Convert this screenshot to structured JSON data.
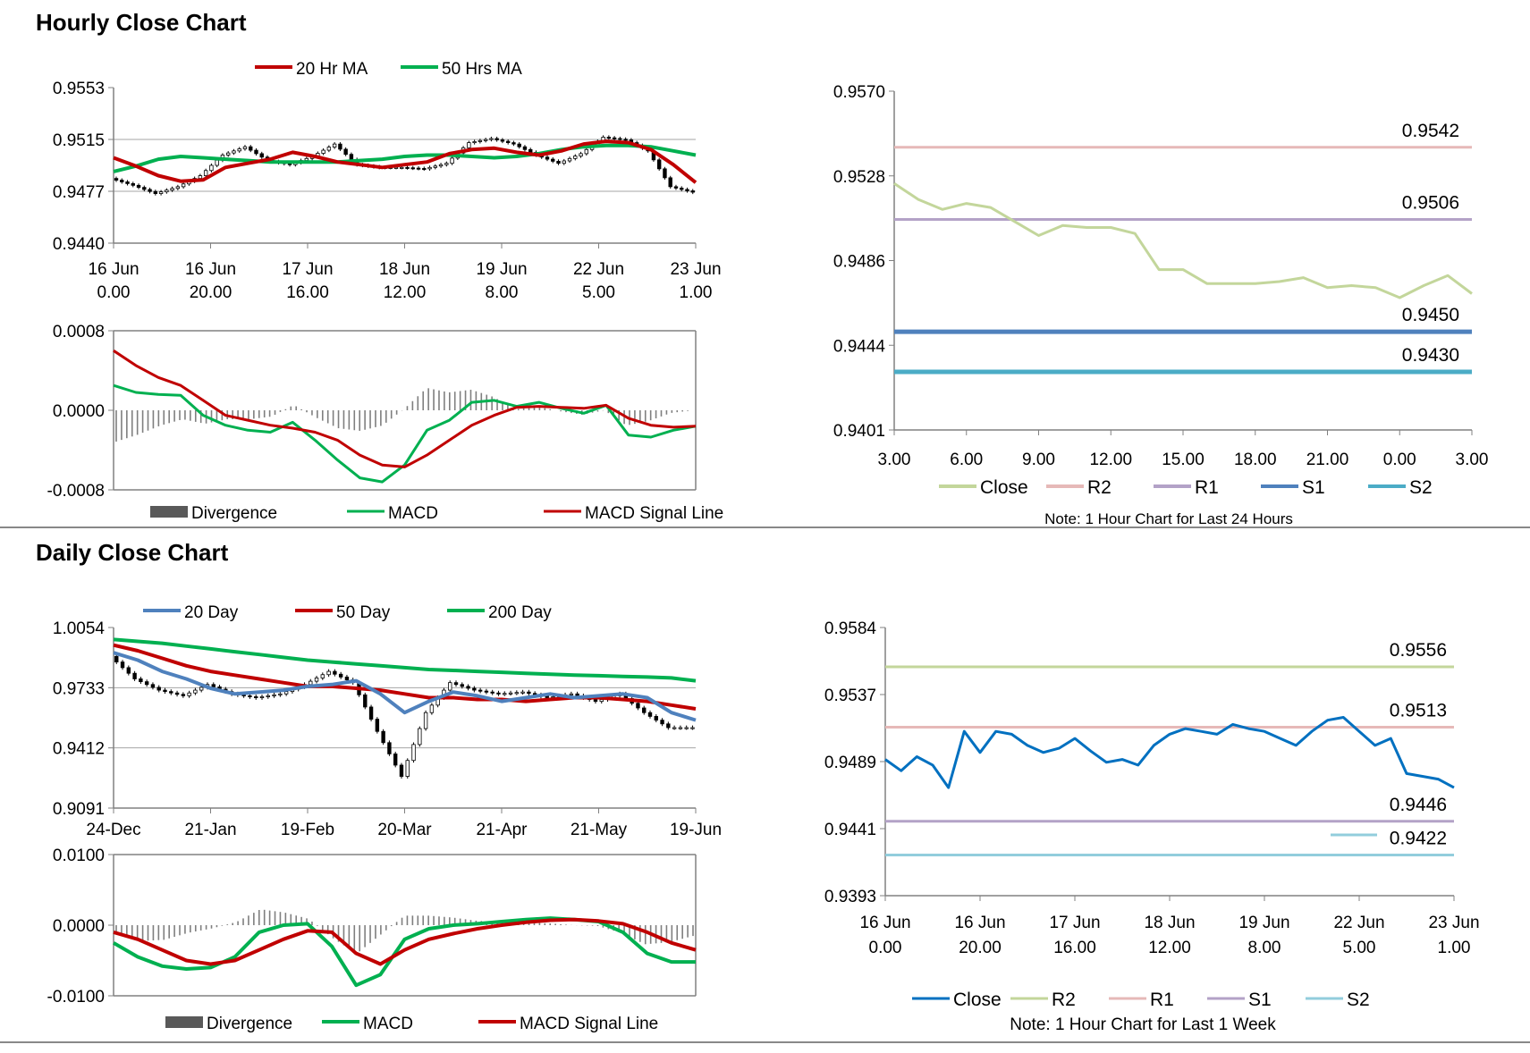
{
  "sections": {
    "hourly_title": "Hourly Close Chart",
    "daily_title": "Daily Close Chart"
  },
  "chart_data": [
    {
      "id": "hourly-price",
      "type": "line",
      "legend": [
        "20 Hr MA",
        "50 Hrs MA"
      ],
      "legend_colors": [
        "#c00000",
        "#00b050"
      ],
      "y_ticks": [
        "0.9553",
        "0.9515",
        "0.9477",
        "0.9440"
      ],
      "ylim": [
        0.944,
        0.9553
      ],
      "x_tick_labels": [
        [
          "16 Jun",
          "0.00"
        ],
        [
          "16 Jun",
          "20.00"
        ],
        [
          "17 Jun",
          "16.00"
        ],
        [
          "18 Jun",
          "12.00"
        ],
        [
          "19 Jun",
          "8.00"
        ],
        [
          "22 Jun",
          "5.00"
        ],
        [
          "23 Jun",
          "1.00"
        ]
      ],
      "series": [
        {
          "name": "20 Hr MA",
          "color": "#c00000",
          "values": [
            0.9502,
            0.9496,
            0.9489,
            0.9485,
            0.9486,
            0.9495,
            0.9498,
            0.9501,
            0.9506,
            0.9503,
            0.9499,
            0.9497,
            0.9495,
            0.9497,
            0.9499,
            0.9505,
            0.9508,
            0.9509,
            0.9506,
            0.9504,
            0.9507,
            0.9512,
            0.9514,
            0.9513,
            0.9508,
            0.9497,
            0.9484
          ]
        },
        {
          "name": "50 Hrs MA",
          "color": "#00b050",
          "values": [
            0.9492,
            0.9496,
            0.9501,
            0.9503,
            0.9502,
            0.9501,
            0.95,
            0.9499,
            0.9499,
            0.9499,
            0.9499,
            0.95,
            0.9501,
            0.9503,
            0.9504,
            0.9504,
            0.9503,
            0.9502,
            0.9503,
            0.9505,
            0.9508,
            0.951,
            0.9511,
            0.9511,
            0.951,
            0.9507,
            0.9504
          ]
        },
        {
          "name": "Price",
          "color": "#000000",
          "values": [
            0.9487,
            0.9482,
            0.9476,
            0.9481,
            0.9489,
            0.9504,
            0.951,
            0.95,
            0.9497,
            0.9503,
            0.9512,
            0.9497,
            0.9495,
            0.9495,
            0.9494,
            0.9498,
            0.9513,
            0.9516,
            0.9512,
            0.9504,
            0.9498,
            0.9505,
            0.9517,
            0.9515,
            0.9507,
            0.9481,
            0.9477
          ]
        }
      ]
    },
    {
      "id": "hourly-macd",
      "type": "line",
      "legend": [
        "Divergence",
        "MACD",
        "MACD Signal Line"
      ],
      "legend_colors": [
        "#595959",
        "#00b050",
        "#c00000"
      ],
      "y_ticks": [
        "0.0008",
        "0.0000",
        "-0.0008"
      ],
      "ylim": [
        -0.0008,
        0.0008
      ],
      "series": [
        {
          "name": "MACD",
          "color": "#00b050",
          "values": [
            0.00025,
            0.00018,
            0.00016,
            0.00015,
            -5e-05,
            -0.00015,
            -0.0002,
            -0.00022,
            -0.00012,
            -0.0003,
            -0.0005,
            -0.00068,
            -0.00072,
            -0.00055,
            -0.0002,
            -0.0001,
            8e-05,
            0.0001,
            4e-05,
            8e-05,
            2e-05,
            -3e-05,
            5e-05,
            -0.00025,
            -0.00027,
            -0.0002,
            -0.00016
          ]
        },
        {
          "name": "MACD Signal Line",
          "color": "#c00000",
          "values": [
            0.0006,
            0.00045,
            0.00033,
            0.00025,
            0.0001,
            -5e-05,
            -0.0001,
            -0.00015,
            -0.00018,
            -0.00022,
            -0.0003,
            -0.00045,
            -0.00055,
            -0.00057,
            -0.00045,
            -0.0003,
            -0.00015,
            -5e-05,
            3e-05,
            4e-05,
            3e-05,
            2e-05,
            5e-05,
            -8e-05,
            -0.00015,
            -0.00017,
            -0.00016
          ]
        }
      ]
    },
    {
      "id": "hourly-pivot",
      "type": "line",
      "legend": [
        "Close",
        "R2",
        "R1",
        "S1",
        "S2"
      ],
      "legend_colors": [
        "#c3d69b",
        "#e6b9b8",
        "#b3a2c7",
        "#4f81bd",
        "#4bacc6"
      ],
      "y_ticks": [
        "0.9570",
        "0.9528",
        "0.9486",
        "0.9444",
        "0.9401"
      ],
      "ylim": [
        0.9401,
        0.957
      ],
      "x_tick_labels": [
        "3.00",
        "6.00",
        "9.00",
        "12.00",
        "15.00",
        "18.00",
        "21.00",
        "0.00",
        "3.00"
      ],
      "levels": [
        {
          "name": "R2",
          "value": "0.9542",
          "color": "#e6b9b8"
        },
        {
          "name": "R1",
          "value": "0.9506",
          "color": "#b3a2c7"
        },
        {
          "name": "S1",
          "value": "0.9450",
          "color": "#4f81bd"
        },
        {
          "name": "S2",
          "value": "0.9430",
          "color": "#4bacc6"
        }
      ],
      "series": [
        {
          "name": "Close",
          "color": "#c3d69b",
          "values": [
            0.9524,
            0.9516,
            0.9511,
            0.9514,
            0.9512,
            0.9505,
            0.9498,
            0.9503,
            0.9502,
            0.9502,
            0.9499,
            0.9481,
            0.9481,
            0.9474,
            0.9474,
            0.9474,
            0.9475,
            0.9477,
            0.9472,
            0.9473,
            0.9472,
            0.9467,
            0.9473,
            0.9478,
            0.9469
          ]
        }
      ],
      "note": "Note: 1 Hour Chart for Last 24 Hours"
    },
    {
      "id": "daily-price",
      "type": "line",
      "legend": [
        "20 Day",
        "50 Day",
        "200 Day"
      ],
      "legend_colors": [
        "#4f81bd",
        "#c00000",
        "#00b050"
      ],
      "y_ticks": [
        "1.0054",
        "0.9733",
        "0.9412",
        "0.9091"
      ],
      "ylim": [
        0.9091,
        1.0054
      ],
      "x_tick_labels": [
        "24-Dec",
        "21-Jan",
        "19-Feb",
        "20-Mar",
        "21-Apr",
        "21-May",
        "19-Jun"
      ],
      "series": [
        {
          "name": "20 Day",
          "color": "#4f81bd",
          "values": [
            0.992,
            0.988,
            0.982,
            0.978,
            0.973,
            0.97,
            0.971,
            0.972,
            0.974,
            0.975,
            0.977,
            0.97,
            0.96,
            0.966,
            0.971,
            0.969,
            0.966,
            0.968,
            0.97,
            0.968,
            0.969,
            0.97,
            0.968,
            0.96,
            0.956
          ]
        },
        {
          "name": "50 Day",
          "color": "#c00000",
          "values": [
            0.996,
            0.993,
            0.989,
            0.985,
            0.982,
            0.98,
            0.978,
            0.976,
            0.974,
            0.974,
            0.973,
            0.972,
            0.97,
            0.968,
            0.968,
            0.967,
            0.967,
            0.966,
            0.967,
            0.968,
            0.968,
            0.967,
            0.966,
            0.964,
            0.962
          ]
        },
        {
          "name": "200 Day",
          "color": "#00b050",
          "values": [
            0.999,
            0.998,
            0.997,
            0.9955,
            0.994,
            0.9925,
            0.991,
            0.9895,
            0.988,
            0.987,
            0.986,
            0.985,
            0.984,
            0.983,
            0.9825,
            0.982,
            0.9815,
            0.981,
            0.9805,
            0.98,
            0.9797,
            0.9793,
            0.979,
            0.9785,
            0.977
          ]
        },
        {
          "name": "Price",
          "color": "#000000",
          "values": [
            0.99,
            0.978,
            0.972,
            0.969,
            0.975,
            0.97,
            0.968,
            0.97,
            0.975,
            0.982,
            0.976,
            0.95,
            0.926,
            0.96,
            0.976,
            0.972,
            0.97,
            0.971,
            0.968,
            0.97,
            0.966,
            0.97,
            0.96,
            0.952,
            0.952
          ]
        }
      ]
    },
    {
      "id": "daily-macd",
      "type": "line",
      "legend": [
        "Divergence",
        "MACD",
        "MACD Signal Line"
      ],
      "legend_colors": [
        "#595959",
        "#00b050",
        "#c00000"
      ],
      "y_ticks": [
        "0.0100",
        "0.0000",
        "-0.0100"
      ],
      "ylim": [
        -0.01,
        0.01
      ],
      "series": [
        {
          "name": "MACD",
          "color": "#00b050",
          "values": [
            -0.0025,
            -0.0045,
            -0.0058,
            -0.0062,
            -0.006,
            -0.0045,
            -0.001,
            0.0,
            0.0002,
            -0.003,
            -0.0085,
            -0.007,
            -0.002,
            -0.0005,
            0.0,
            0.0002,
            0.0005,
            0.0008,
            0.001,
            0.0008,
            0.0005,
            -0.001,
            -0.004,
            -0.0052,
            -0.0052
          ]
        },
        {
          "name": "MACD Signal Line",
          "color": "#c00000",
          "values": [
            -0.001,
            -0.002,
            -0.0035,
            -0.005,
            -0.0055,
            -0.005,
            -0.0035,
            -0.002,
            -0.0008,
            -0.001,
            -0.004,
            -0.0055,
            -0.0035,
            -0.002,
            -0.0012,
            -0.0005,
            0.0,
            0.0004,
            0.0007,
            0.0008,
            0.0006,
            0.0002,
            -0.001,
            -0.0025,
            -0.0035
          ]
        }
      ]
    },
    {
      "id": "weekly-pivot",
      "type": "line",
      "legend": [
        "Close",
        "R2",
        "R1",
        "S1",
        "S2"
      ],
      "legend_colors": [
        "#0070c0",
        "#c3d69b",
        "#e6b9b8",
        "#b3a2c7",
        "#92cddc"
      ],
      "y_ticks": [
        "0.9584",
        "0.9537",
        "0.9489",
        "0.9441",
        "0.9393"
      ],
      "ylim": [
        0.9393,
        0.9584
      ],
      "x_tick_labels": [
        [
          "16 Jun",
          "0.00"
        ],
        [
          "16 Jun",
          "20.00"
        ],
        [
          "17 Jun",
          "16.00"
        ],
        [
          "18 Jun",
          "12.00"
        ],
        [
          "19 Jun",
          "8.00"
        ],
        [
          "22 Jun",
          "5.00"
        ],
        [
          "23 Jun",
          "1.00"
        ]
      ],
      "levels": [
        {
          "name": "R2",
          "value": "0.9556",
          "color": "#c3d69b"
        },
        {
          "name": "R1",
          "value": "0.9513",
          "color": "#e6b9b8"
        },
        {
          "name": "S1",
          "value": "0.9446",
          "color": "#b3a2c7"
        },
        {
          "name": "S2",
          "value": "0.9422",
          "color": "#92cddc"
        }
      ],
      "series": [
        {
          "name": "Close",
          "color": "#0070c0",
          "values": [
            0.949,
            0.9482,
            0.9492,
            0.9486,
            0.947,
            0.951,
            0.9495,
            0.951,
            0.9508,
            0.95,
            0.9495,
            0.9498,
            0.9505,
            0.9496,
            0.9488,
            0.949,
            0.9486,
            0.95,
            0.9508,
            0.9512,
            0.951,
            0.9508,
            0.9515,
            0.9512,
            0.951,
            0.9505,
            0.95,
            0.951,
            0.9518,
            0.952,
            0.951,
            0.95,
            0.9505,
            0.948,
            0.9478,
            0.9476,
            0.947
          ]
        }
      ],
      "note": "Note: 1 Hour Chart for Last 1 Week"
    }
  ]
}
